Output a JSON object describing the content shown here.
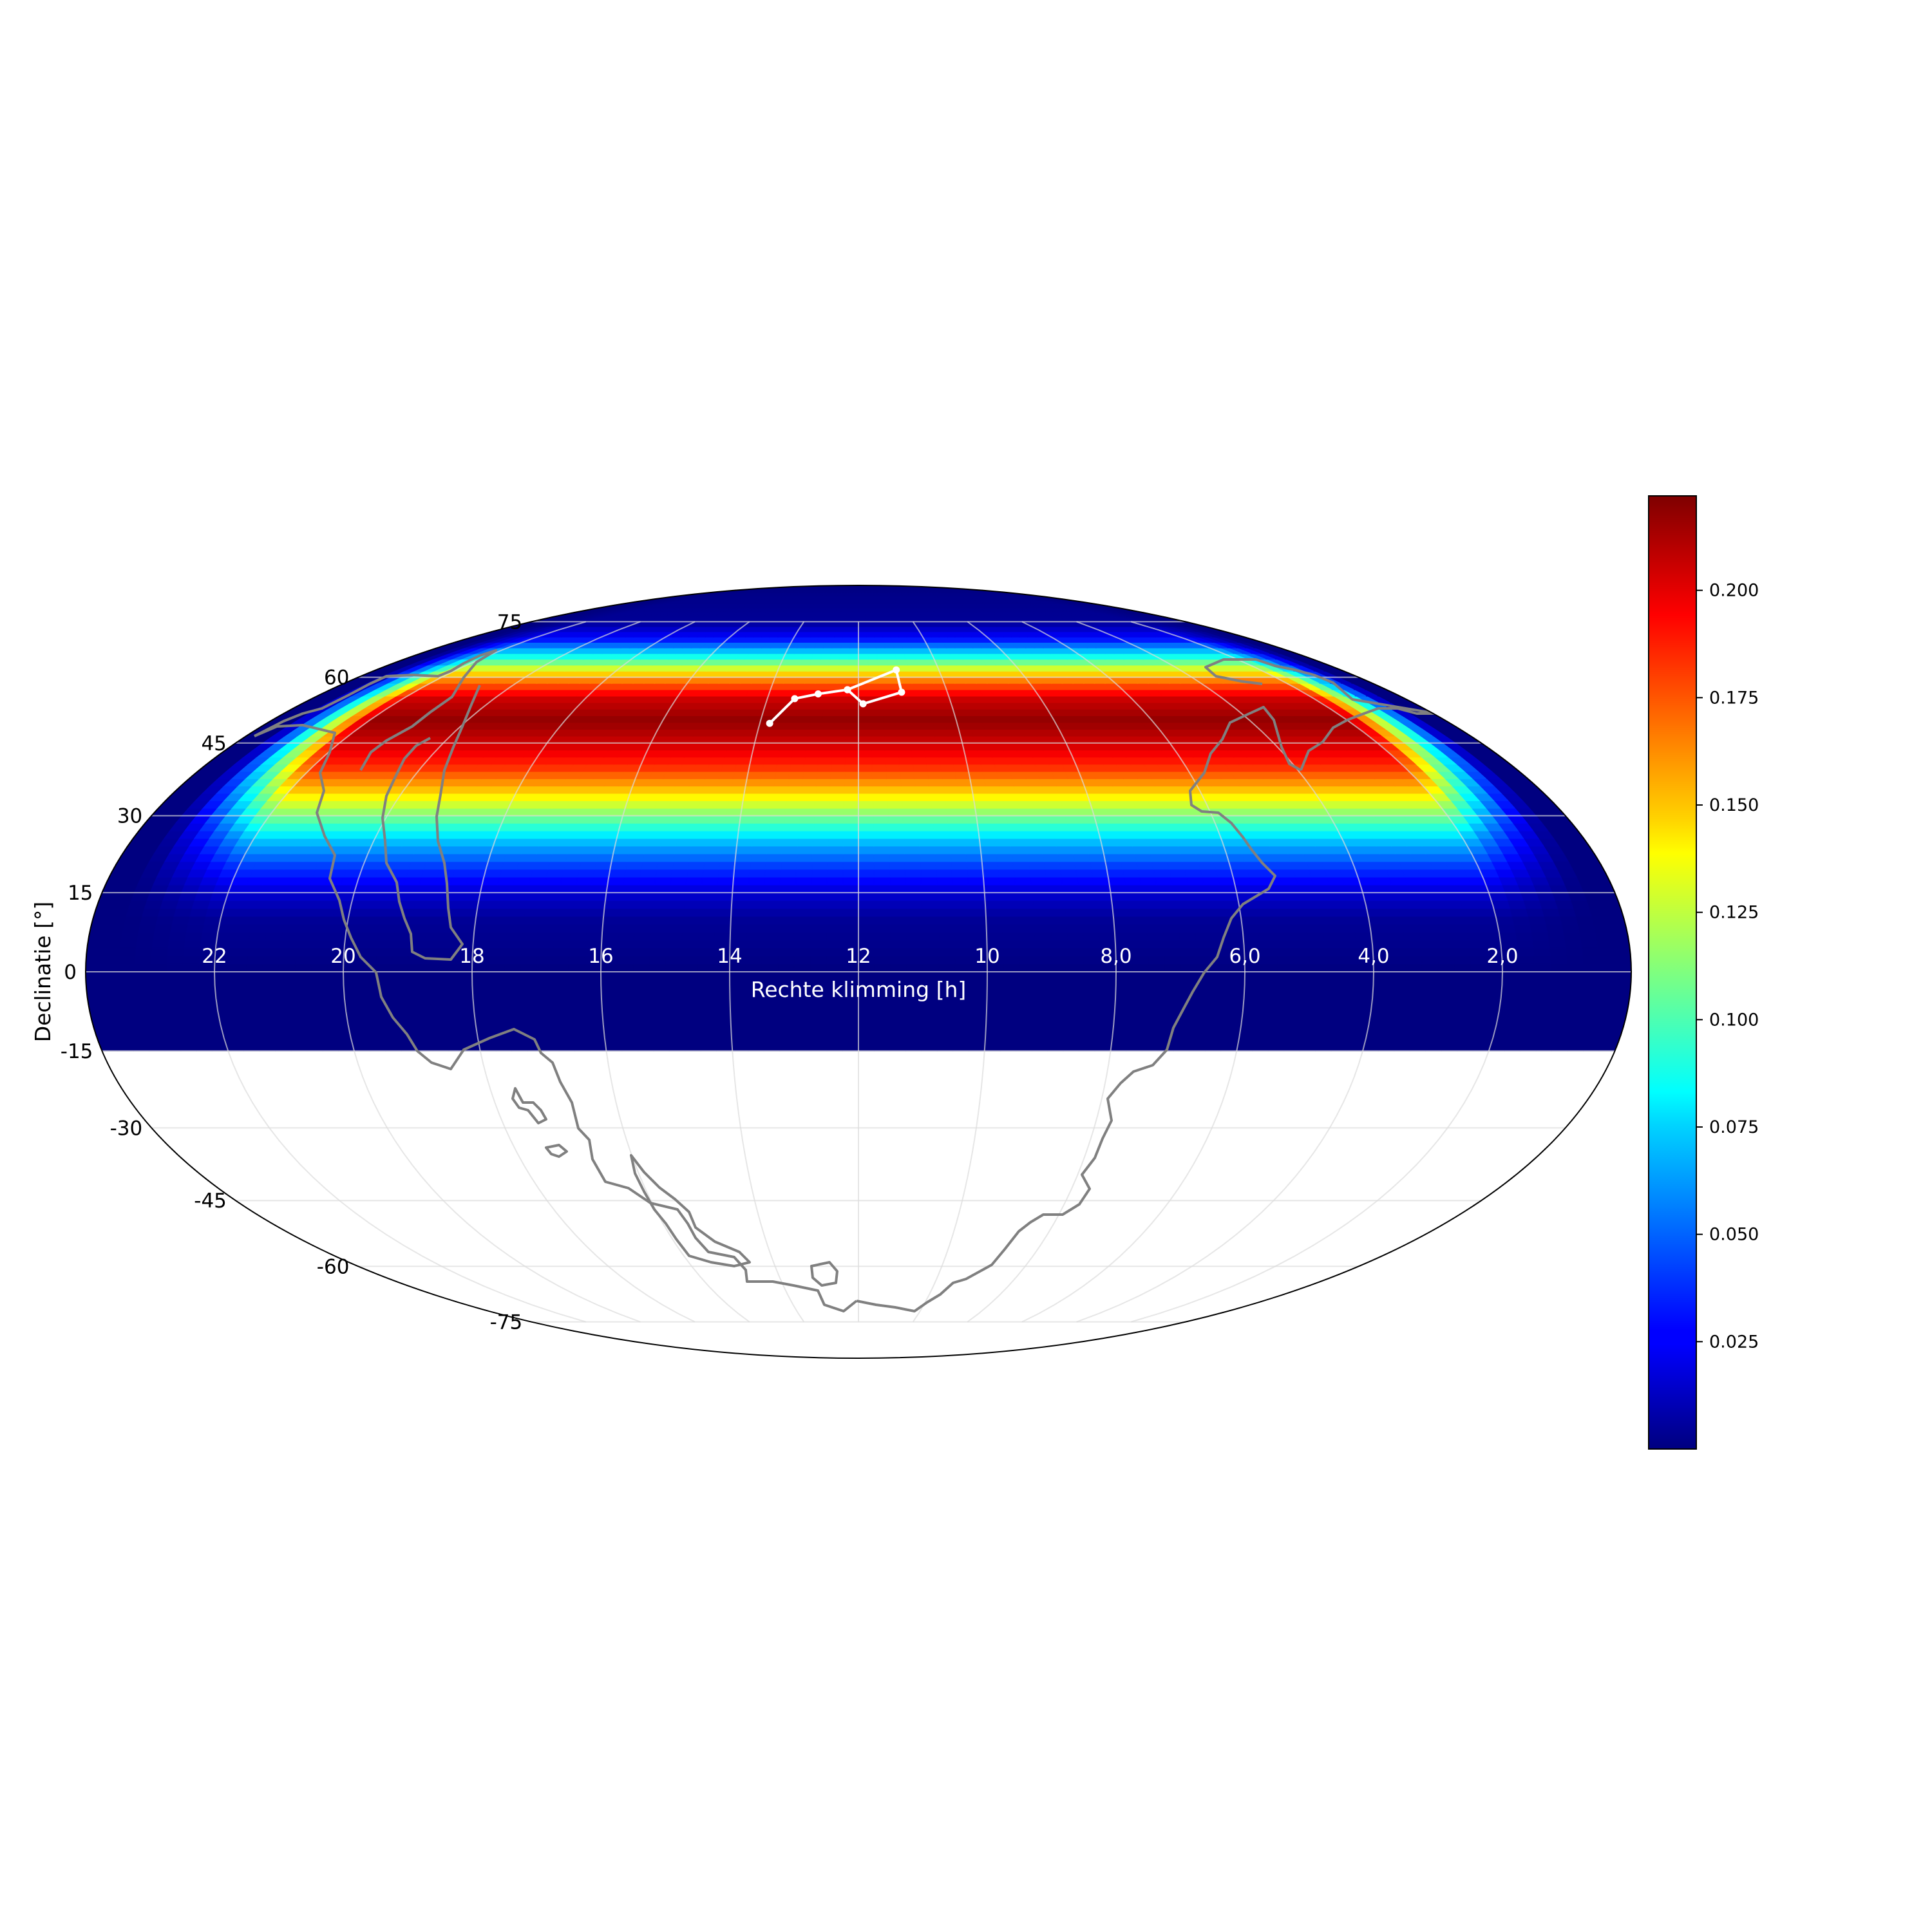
{
  "chart_data": {
    "type": "heatmap",
    "projection": "mollweide",
    "xlabel": "Rechte klimming [h]",
    "ylabel": "Declinatie [°]",
    "ra_ticks": [
      "22",
      "20",
      "18",
      "16",
      "14",
      "12",
      "10",
      "8,0",
      "6,0",
      "4,0",
      "2,0"
    ],
    "ra_tick_values_h": [
      22,
      20,
      18,
      16,
      14,
      12,
      10,
      8,
      6,
      4,
      2
    ],
    "dec_ticks": [
      "75",
      "60",
      "45",
      "30",
      "15",
      "0",
      "-15",
      "-30",
      "-45",
      "-60",
      "-75"
    ],
    "dec_tick_values_deg": [
      75,
      60,
      45,
      30,
      15,
      0,
      -15,
      -30,
      -45,
      -60,
      -75
    ],
    "ra_direction": "increasing to the left",
    "colormap": "jet",
    "colorbar": {
      "min": 0.0,
      "max": 0.222,
      "tick_labels": [
        "0.025",
        "0.050",
        "0.075",
        "0.100",
        "0.125",
        "0.150",
        "0.175",
        "0.200"
      ],
      "tick_values": [
        0.025,
        0.05,
        0.075,
        0.1,
        0.125,
        0.15,
        0.175,
        0.2
      ],
      "placement": "right"
    },
    "field": {
      "description_values": "probability density by declination; near zero below ~15°, peak around 50° declination, near zero at 75°",
      "dec_deg": [
        -15,
        0,
        10,
        15,
        20,
        25,
        30,
        35,
        40,
        45,
        50,
        55,
        60,
        65,
        70,
        75,
        90
      ],
      "value": [
        0.0,
        0.0,
        0.005,
        0.018,
        0.04,
        0.07,
        0.11,
        0.15,
        0.185,
        0.205,
        0.218,
        0.205,
        0.16,
        0.09,
        0.03,
        0.005,
        0.0
      ],
      "dec_min_deg": -15,
      "edge_falloff_ra_h": [
        [
          0.5,
          0.0
        ],
        [
          2.0,
          1.0
        ],
        [
          22.0,
          1.0
        ],
        [
          23.5,
          0.0
        ]
      ]
    },
    "constellation": {
      "ra_h": [
        13.8,
        13.4,
        12.9,
        12.25,
        11.9,
        11.03,
        11.06,
        12.25
      ],
      "dec_deg": [
        49.3,
        54.9,
        56.0,
        57.0,
        53.7,
        56.4,
        61.8,
        57.0
      ]
    },
    "grid": true
  },
  "colors": {
    "coastline": "#808080",
    "grid": "#dcdcdc",
    "constellation": "#ffffff",
    "border": "#000000"
  }
}
